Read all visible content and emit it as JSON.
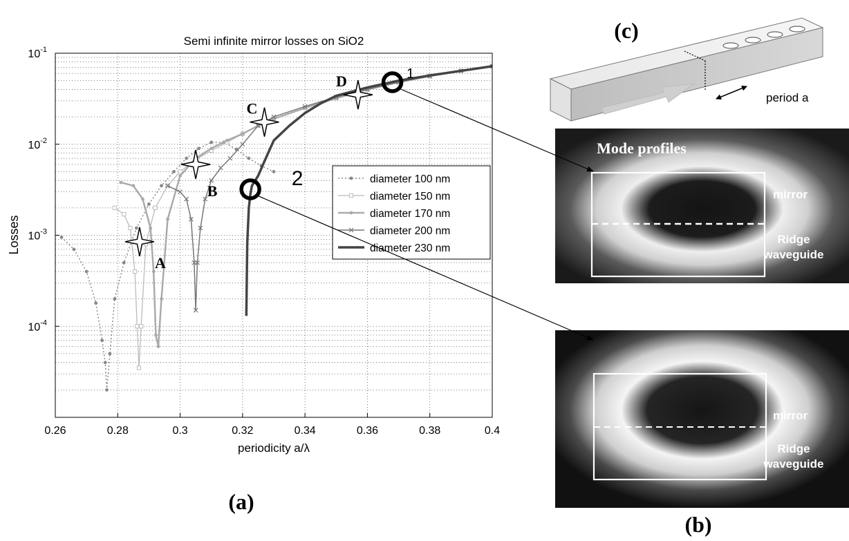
{
  "chart_data": {
    "type": "line",
    "title": "Semi infinite mirror losses on SiO2",
    "xlabel": "periodicity a/λ",
    "ylabel": "Losses",
    "xlim": [
      0.26,
      0.4
    ],
    "ylim": [
      1e-05,
      0.1
    ],
    "yscale": "log",
    "grid": true,
    "x_ticks": [
      "0.26",
      "0.28",
      "0.3",
      "0.32",
      "0.34",
      "0.36",
      "0.38",
      "0.4"
    ],
    "x_tick_values": [
      0.26,
      0.28,
      0.3,
      0.32,
      0.34,
      0.36,
      0.38,
      0.4
    ],
    "y_ticks": [
      {
        "base": "10",
        "exp": "-1",
        "value": 0.1
      },
      {
        "base": "10",
        "exp": "-2",
        "value": 0.01
      },
      {
        "base": "10",
        "exp": "-3",
        "value": 0.001
      },
      {
        "base": "10",
        "exp": "-4",
        "value": 0.0001
      }
    ],
    "legend_position": "right-middle",
    "series": [
      {
        "name": "diameter 100 nm",
        "color": "#888888",
        "marker": "dot",
        "dash": "2,3",
        "width": 1.5,
        "x": [
          0.262,
          0.266,
          0.27,
          0.273,
          0.275,
          0.276,
          0.2765,
          0.2775,
          0.279,
          0.282,
          0.286,
          0.29,
          0.294,
          0.298,
          0.302,
          0.306,
          0.31,
          0.314,
          0.318,
          0.322,
          0.326,
          0.33
        ],
        "y": [
          0.00095,
          0.0007,
          0.0004,
          0.00018,
          7e-05,
          4e-05,
          2e-05,
          5e-05,
          0.0002,
          0.0005,
          0.0012,
          0.0022,
          0.0035,
          0.005,
          0.007,
          0.009,
          0.0105,
          0.0105,
          0.0088,
          0.007,
          0.0058,
          0.005
        ]
      },
      {
        "name": "diameter 150 nm",
        "color": "#bbbbbb",
        "marker": "square",
        "dash": "",
        "width": 1.3,
        "x": [
          0.279,
          0.282,
          0.284,
          0.2855,
          0.2862,
          0.2868,
          0.2875,
          0.289,
          0.292,
          0.296,
          0.3,
          0.305,
          0.31,
          0.315,
          0.32,
          0.325,
          0.33,
          0.34,
          0.35,
          0.36,
          0.37,
          0.38,
          0.39,
          0.4
        ],
        "y": [
          0.002,
          0.0017,
          0.0012,
          0.0004,
          0.0001,
          3.5e-05,
          0.0001,
          0.0008,
          0.002,
          0.0035,
          0.005,
          0.0068,
          0.0085,
          0.0105,
          0.013,
          0.016,
          0.019,
          0.025,
          0.032,
          0.04,
          0.048,
          0.056,
          0.064,
          0.072
        ]
      },
      {
        "name": "diameter 170 nm",
        "color": "#aaaaaa",
        "marker": "dot",
        "dash": "",
        "width": 2.5,
        "x": [
          0.281,
          0.285,
          0.288,
          0.2905,
          0.2915,
          0.2922,
          0.293,
          0.294,
          0.296,
          0.3,
          0.305,
          0.31,
          0.315,
          0.32,
          0.325,
          0.33,
          0.34,
          0.35,
          0.36,
          0.37,
          0.38,
          0.39,
          0.4
        ],
        "y": [
          0.0038,
          0.0035,
          0.0025,
          0.0012,
          0.0004,
          8e-05,
          6e-05,
          0.0002,
          0.0015,
          0.0045,
          0.007,
          0.009,
          0.011,
          0.013,
          0.016,
          0.019,
          0.025,
          0.032,
          0.04,
          0.048,
          0.056,
          0.064,
          0.072
        ]
      },
      {
        "name": "diameter 200 nm",
        "color": "#777777",
        "marker": "x",
        "dash": "",
        "width": 1.5,
        "x": [
          0.296,
          0.3,
          0.302,
          0.3035,
          0.3045,
          0.305,
          0.3055,
          0.3065,
          0.308,
          0.31,
          0.313,
          0.316,
          0.32,
          0.325,
          0.33,
          0.34,
          0.35,
          0.36,
          0.37,
          0.38,
          0.39,
          0.4
        ],
        "y": [
          0.0035,
          0.003,
          0.0025,
          0.0015,
          0.0005,
          0.00015,
          0.0005,
          0.0012,
          0.0025,
          0.004,
          0.0055,
          0.007,
          0.01,
          0.016,
          0.02,
          0.026,
          0.033,
          0.04,
          0.048,
          0.056,
          0.064,
          0.072
        ]
      },
      {
        "name": "diameter 230 nm",
        "color": "#444444",
        "marker": "none",
        "dash": "",
        "width": 3.5,
        "x": [
          0.3212,
          0.3215,
          0.322,
          0.3225,
          0.323,
          0.325,
          0.327,
          0.33,
          0.335,
          0.34,
          0.345,
          0.35,
          0.36,
          0.37,
          0.38,
          0.39,
          0.4
        ],
        "y": [
          0.00013,
          0.0008,
          0.002,
          0.0028,
          0.0035,
          0.0045,
          0.0065,
          0.011,
          0.016,
          0.022,
          0.028,
          0.034,
          0.042,
          0.05,
          0.057,
          0.064,
          0.072
        ]
      }
    ],
    "stars": [
      {
        "label": "A",
        "x": 0.287,
        "y": 0.00085
      },
      {
        "label": "B",
        "x": 0.305,
        "y": 0.006
      },
      {
        "label": "C",
        "x": 0.327,
        "y": 0.0175
      },
      {
        "label": "D",
        "x": 0.357,
        "y": 0.035
      }
    ],
    "circles": [
      {
        "label": "1",
        "x": 0.368,
        "y": 0.048
      },
      {
        "label": "2",
        "x": 0.3225,
        "y": 0.0032
      }
    ]
  },
  "panel_labels": {
    "a": "(a)",
    "b": "(b)",
    "c": "(c)"
  },
  "inset_c": {
    "period_label": "period a"
  },
  "mode_top": {
    "title": "Mode profiles",
    "mirror": "mirror",
    "ridge_line1": "Ridge",
    "ridge_line2": "waveguide"
  },
  "mode_bottom": {
    "mirror": "mirror",
    "ridge_line1": "Ridge",
    "ridge_line2": "waveguide"
  }
}
